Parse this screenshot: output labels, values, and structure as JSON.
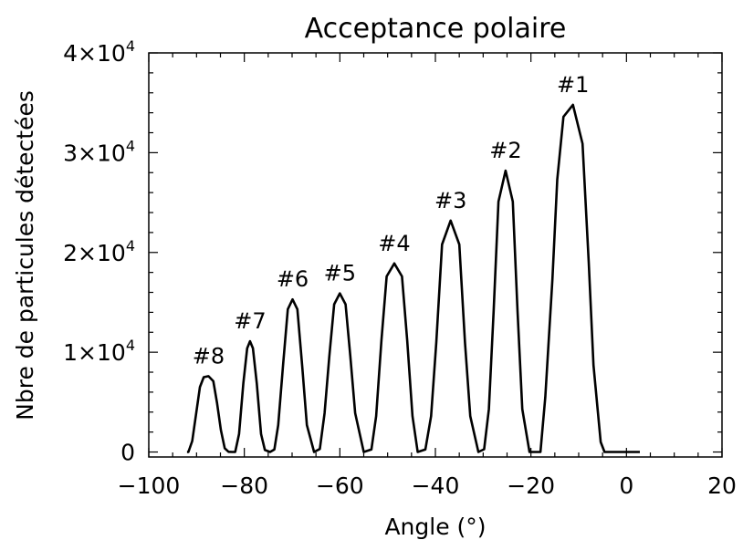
{
  "chart_data": {
    "type": "line",
    "title": "Acceptance polaire",
    "xlabel": "Angle (°)",
    "ylabel": "Nbre de particules détectées",
    "xlim": [
      -100,
      20
    ],
    "ylim": [
      -500,
      40000
    ],
    "x_ticks": [
      {
        "value": -100,
        "label": "−100"
      },
      {
        "value": -80,
        "label": "−80"
      },
      {
        "value": -60,
        "label": "−60"
      },
      {
        "value": -40,
        "label": "−40"
      },
      {
        "value": -20,
        "label": "−20"
      },
      {
        "value": 0,
        "label": "0"
      },
      {
        "value": 20,
        "label": "20"
      }
    ],
    "y_ticks": [
      {
        "value": 0,
        "mantissa": "0",
        "exponent": ""
      },
      {
        "value": 10000,
        "mantissa": "1×10",
        "exponent": "4"
      },
      {
        "value": 20000,
        "mantissa": "2×10",
        "exponent": "4"
      },
      {
        "value": 30000,
        "mantissa": "3×10",
        "exponent": "4"
      },
      {
        "value": 40000,
        "mantissa": "4×10",
        "exponent": "4"
      }
    ],
    "x_minor_step": 5,
    "y_minor_step": 2000,
    "grid": false,
    "legend": "none",
    "peaks": [
      {
        "label": "#1",
        "center": -11.2,
        "height": 34800,
        "halfwidth": 6.6
      },
      {
        "label": "#2",
        "center": -25.3,
        "height": 28200,
        "halfwidth": 5.0
      },
      {
        "label": "#3",
        "center": -36.8,
        "height": 23200,
        "halfwidth": 5.8
      },
      {
        "label": "#4",
        "center": -48.6,
        "height": 18900,
        "halfwidth": 4.9
      },
      {
        "label": "#5",
        "center": -60.0,
        "height": 15900,
        "halfwidth": 5.0
      },
      {
        "label": "#6",
        "center": -69.9,
        "height": 15300,
        "halfwidth": 4.5
      },
      {
        "label": "#7",
        "center": -78.8,
        "height": 11100,
        "halfwidth": 4.2
      },
      {
        "label": "#8",
        "center": -87.5,
        "height": 7600,
        "halfwidth": 4.2
      }
    ],
    "series": [
      {
        "x": [
          -92,
          -91.7,
          -90.9,
          -90.1,
          -89.3,
          -88.5,
          -87.5,
          -86.5,
          -85.7,
          -84.9,
          -84.1,
          -83.3,
          -82.5,
          -81.9,
          -81.1,
          -80.2,
          -79.4,
          -78.8,
          -78.2,
          -77.4,
          -76.5,
          -75.7,
          -74.6,
          -73.7,
          -72.9,
          -71.9,
          -70.9,
          -69.9,
          -68.9,
          -67.9,
          -66.9,
          -65.4,
          -64.2,
          -63.2,
          -62.2,
          -61.2,
          -60.0,
          -58.8,
          -57.8,
          -56.8,
          -55.0,
          -53.4,
          -52.4,
          -51.3,
          -50.2,
          -48.6,
          -47.0,
          -45.9,
          -44.8,
          -43.7,
          -42.1,
          -40.9,
          -39.8,
          -38.6,
          -36.8,
          -35.0,
          -33.8,
          -32.7,
          -31.0,
          -29.8,
          -28.8,
          -27.8,
          -26.8,
          -25.3,
          -23.8,
          -22.8,
          -21.8,
          -20.3,
          -18.0,
          -17.0,
          -15.5,
          -14.5,
          -13.2,
          -11.2,
          -9.2,
          -7.9,
          -6.9,
          -5.4,
          -4.6,
          2.8
        ],
        "y": [
          0,
          5,
          1100,
          3800,
          6500,
          7500,
          7600,
          7100,
          4900,
          2200,
          380,
          20,
          0,
          10,
          1800,
          6900,
          10400,
          11100,
          10400,
          6900,
          1800,
          200,
          0,
          260,
          2700,
          8700,
          14300,
          15300,
          14300,
          8700,
          2700,
          0,
          300,
          3900,
          9600,
          14800,
          15900,
          14800,
          9600,
          3900,
          0,
          250,
          3600,
          11200,
          17600,
          18900,
          17600,
          11200,
          3600,
          0,
          250,
          3600,
          11000,
          20800,
          23200,
          20800,
          11000,
          3600,
          0,
          280,
          4300,
          14100,
          25100,
          28200,
          25100,
          14100,
          4300,
          0,
          0,
          5500,
          17300,
          27300,
          33600,
          34800,
          30900,
          19000,
          8700,
          1000,
          0,
          0
        ]
      }
    ]
  }
}
